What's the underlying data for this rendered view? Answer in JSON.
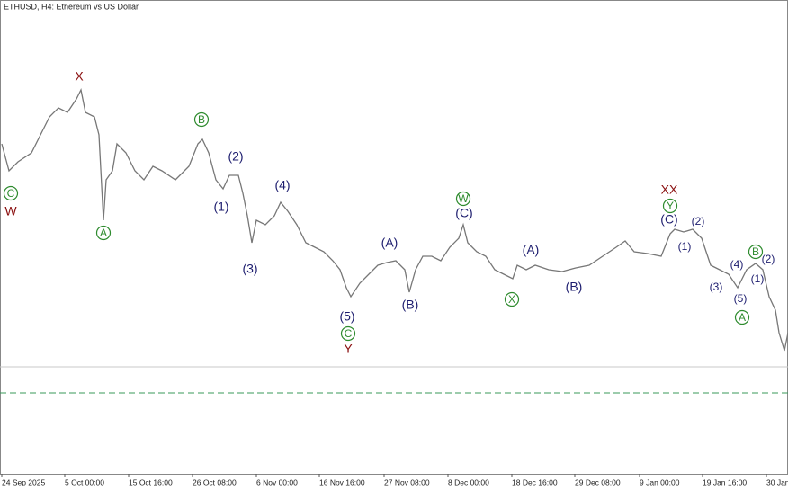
{
  "header": {
    "title": "ETHUSD, H4:  Ethereum vs US Dollar"
  },
  "x_labels": [
    "24 Sep 2025",
    "5 Oct 00:00",
    "15 Oct 16:00",
    "26 Oct 08:00",
    "6 Nov 00:00",
    "16 Nov 16:00",
    "27 Nov 08:00",
    "8 Dec 00:00",
    "18 Dec 16:00",
    "29 Dec 08:00",
    "9 Jan 00:00",
    "19 Jan 16:00",
    "30 Jan"
  ],
  "wave_labels": [
    "C",
    "W",
    "X",
    "A",
    "B",
    "(2)",
    "(1)",
    "(4)",
    "(3)",
    "(5)",
    "C",
    "Y",
    "(A)",
    "(B)",
    "W",
    "(C)",
    "X",
    "(A)",
    "(B)",
    "XX",
    "Y",
    "(C)",
    "(1)",
    "(2)",
    "(3)",
    "(4)",
    "(5)",
    "A",
    "B",
    "(2)",
    "(1)"
  ]
}
